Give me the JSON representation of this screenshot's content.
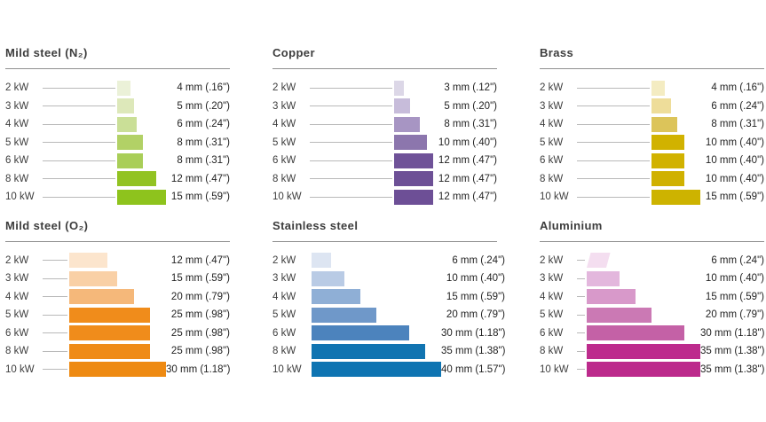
{
  "page": {
    "background": "#ffffff",
    "rule_color": "#909090",
    "leader_color": "#b9b9b9"
  },
  "chart_data": [
    {
      "type": "bar",
      "orientation": "horizontal",
      "title": "Mild steel (N₂)",
      "accent": "#8ec31d",
      "categories": [
        "2 kW",
        "3 kW",
        "4 kW",
        "5 kW",
        "6 kW",
        "8 kW",
        "10 kW"
      ],
      "values_mm": [
        4,
        5,
        6,
        8,
        8,
        12,
        15
      ],
      "labels": [
        "4 mm (.16\")",
        "5 mm (.20\")",
        "6 mm (.24\")",
        "8 mm (.31\")",
        "8 mm (.31\")",
        "12 mm (.47\")",
        "15 mm (.59\")"
      ],
      "bar_colors": [
        "#ebf1d8",
        "#dde8ba",
        "#cadf97",
        "#b2d166",
        "#a9ce58",
        "#92c322",
        "#8ec31d"
      ]
    },
    {
      "type": "bar",
      "orientation": "horizontal",
      "title": "Copper",
      "accent": "#6d4f96",
      "categories": [
        "2 kW",
        "3 kW",
        "4 kW",
        "5 kW",
        "6 kW",
        "8 kW",
        "10 kW"
      ],
      "values_mm": [
        3,
        5,
        8,
        10,
        12,
        12,
        12
      ],
      "labels": [
        "3 mm (.12\")",
        "5 mm (.20\")",
        "8 mm (.31\")",
        "10 mm (.40\")",
        "12 mm (.47\")",
        "12 mm (.47\")",
        "12 mm (.47\")"
      ],
      "bar_colors": [
        "#dcd7e7",
        "#c7bcda",
        "#a795c3",
        "#8c76ad",
        "#6f5298",
        "#6d5096",
        "#6d4f96"
      ]
    },
    {
      "type": "bar",
      "orientation": "horizontal",
      "title": "Brass",
      "accent": "#d1b200",
      "categories": [
        "2 kW",
        "3 kW",
        "4 kW",
        "5 kW",
        "6 kW",
        "8 kW",
        "10 kW"
      ],
      "values_mm": [
        4,
        6,
        8,
        10,
        10,
        10,
        15
      ],
      "labels": [
        "4 mm (.16\")",
        "6 mm (.24\")",
        "8 mm (.31\")",
        "10 mm (.40\")",
        "10 mm (.40\")",
        "10 mm (.40\")",
        "15 mm (.59\")"
      ],
      "bar_colors": [
        "#f4ecc2",
        "#eedd9a",
        "#dcc45a",
        "#d1b200",
        "#d1b200",
        "#d0b100",
        "#cdb300"
      ]
    },
    {
      "type": "bar",
      "orientation": "horizontal",
      "title": "Mild steel (O₂)",
      "accent": "#ee8a12",
      "categories": [
        "2 kW",
        "3 kW",
        "4 kW",
        "5 kW",
        "6 kW",
        "8 kW",
        "10 kW"
      ],
      "values_mm": [
        12,
        15,
        20,
        25,
        25,
        25,
        30
      ],
      "labels": [
        "12 mm (.47\")",
        "15 mm (.59\")",
        "20 mm (.79\")",
        "25 mm (.98\")",
        "25 mm (.98\")",
        "25 mm (.98\")",
        "30 mm (1.18\")"
      ],
      "bar_colors": [
        "#fce5cd",
        "#f9d0a6",
        "#f5b87a",
        "#f08c1b",
        "#f08c1b",
        "#ef8b18",
        "#ee8a12"
      ]
    },
    {
      "type": "bar",
      "orientation": "horizontal",
      "title": "Stainless steel",
      "accent": "#0e74b2",
      "categories": [
        "2 kW",
        "3 kW",
        "4 kW",
        "5 kW",
        "6 kW",
        "8 kW",
        "10 kW"
      ],
      "values_mm": [
        6,
        10,
        15,
        20,
        30,
        35,
        40
      ],
      "labels": [
        "6 mm (.24\")",
        "10 mm (.40\")",
        "15 mm (.59\")",
        "20 mm (.79\")",
        "30 mm (1.18\")",
        "35 mm (1.38\")",
        "40 mm (1.57\")"
      ],
      "bar_colors": [
        "#dde5f2",
        "#b9cbe5",
        "#8fafd6",
        "#6f98c9",
        "#4c83bd",
        "#1174b1",
        "#0e74b2"
      ]
    },
    {
      "type": "bar",
      "orientation": "horizontal",
      "title": "Aluminium",
      "accent": "#bc2a8c",
      "categories": [
        "2 kW",
        "3 kW",
        "4 kW",
        "5 kW",
        "6 kW",
        "8 kW",
        "10 kW"
      ],
      "values_mm": [
        6,
        10,
        15,
        20,
        30,
        35,
        35
      ],
      "labels": [
        "6 mm (.24\")",
        "10 mm (.40\")",
        "15 mm (.59\")",
        "20 mm (.79\")",
        "30 mm (1.18\")",
        "35 mm (1.38\")",
        "35 mm (1.38\")"
      ],
      "bar_colors": [
        "#f4def0",
        "#e3b7dd",
        "#d899ca",
        "#cb79b4",
        "#c461a6",
        "#bd2b8d",
        "#bc2a8c"
      ]
    }
  ]
}
